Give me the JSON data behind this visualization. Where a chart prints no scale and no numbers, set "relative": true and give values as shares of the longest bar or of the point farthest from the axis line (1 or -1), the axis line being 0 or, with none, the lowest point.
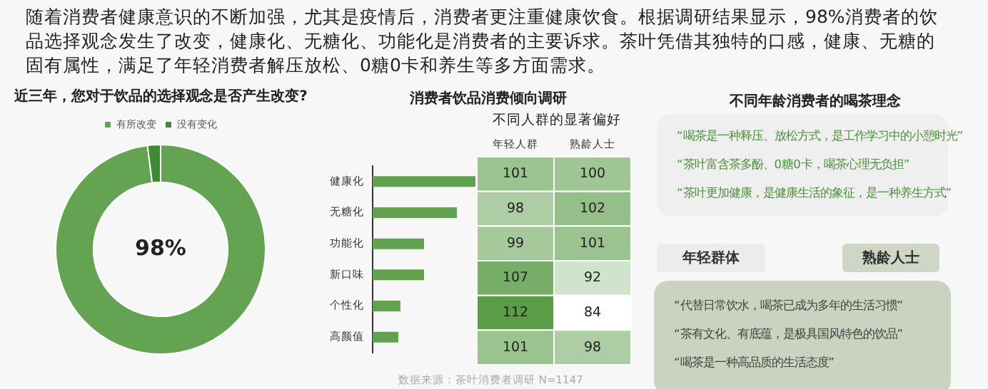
{
  "chart_data": [
    {
      "type": "other",
      "annotations": [
        "随着消费者健康意识的不断加强，尤其是疫情后，消费者更注重健康饮食。根据调研结果显示，98%消费者的饮品选择观念发生了改变，健康化、无糖化、功能化是消费者的主要诉求。茶叶凭借其独特的口感，健康、无糖的固有属性，满足了年轻消费者解压放松、0糖0卡和养生等多方面需求。"
      ]
    },
    {
      "type": "donut",
      "title": "近三年，您对于饮品的选择观念是否产生改变?",
      "categories": [
        "有所改变",
        "没有变化"
      ],
      "values": [
        98,
        2
      ],
      "colors": [
        "#63a352",
        "#3d8a33"
      ],
      "legend": "top",
      "annotations": [
        "98%"
      ]
    },
    {
      "type": "bar",
      "orientation": "horizontal",
      "relative": true,
      "title": "消费者饮品消费倾向调研",
      "categories": [
        "健康化",
        "无糖化",
        "功能化",
        "新口味",
        "个性化",
        "高颜值"
      ],
      "values": [
        1,
        0.82,
        0.5,
        0.5,
        0.27,
        0.25
      ],
      "color": "#62a150",
      "annotations": [
        "数据来源：茶叶消费者调研 N=1147"
      ]
    },
    {
      "type": "heatmap",
      "title": "不同人群的显著偏好",
      "categories": [
        "年轻人群",
        "熟龄人士"
      ],
      "y_categories": [
        null,
        null,
        null,
        null,
        null,
        null
      ],
      "tick_labels": "x",
      "cells": [
        [
          101,
          100
        ],
        [
          98,
          102
        ],
        [
          99,
          101
        ],
        [
          107,
          92
        ],
        [
          112,
          84
        ],
        [
          101,
          98
        ]
      ],
      "data_labels": true
    },
    {
      "type": "other",
      "title": "不同年龄消费者的喝茶理念",
      "annotations": [
        "“喝茶是一种释压、放松方式，是工作学习中的小憩时光”",
        "“茶叶富含茶多酚、0糖0卡，喝茶心理无负担”",
        "“茶叶更加健康，是健康生活的象征，是一种养生方式”",
        "年轻群体",
        "熟龄人士",
        "“代替日常饮水，喝茶已成为多年的生活习惯”",
        "“茶有文化、有底蕴，是极具国风特色的饮品”",
        "“喝茶是一种高品质的生活态度”"
      ]
    }
  ]
}
